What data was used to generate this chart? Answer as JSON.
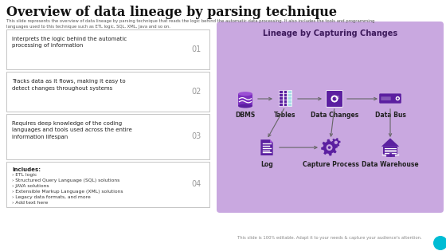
{
  "title": "Overview of data lineage by parsing technique",
  "subtitle": "This slide represents the overview of data lineage by parsing technique that reads the logic behind the automatic data processing. It also includes the tools and programming\nlanguages used to this technique such as ETL logic, SQL, XML, Java and so on.",
  "bg_color": "#ffffff",
  "right_panel_bg": "#c9a8e0",
  "right_panel_title": "Lineage by Capturing Changes",
  "right_title_color": "#3d1a5c",
  "icon_color": "#5b1fa0",
  "icon_color2": "#7b2fbe",
  "tables_cyan": "#a8dde8",
  "arrow_color": "#666666",
  "items": [
    {
      "num": "01",
      "text": "Interprets the logic behind the automatic\nprocessing of information",
      "bold_first": false
    },
    {
      "num": "02",
      "text": "Tracks data as it flows, making it easy to\ndetect changes throughout systems",
      "bold_first": false
    },
    {
      "num": "03",
      "text": "Requires deep knowledge of the coding\nlanguages and tools used across the entire\ninformation lifespan",
      "bold_first": false
    },
    {
      "num": "04",
      "text": "Includes:\n› ETL logic\n› Structured Query Language (SQL) solutions\n› JAVA solutions\n› Extensible Markup Language (XML) solutions\n› Legacy data formats, and more\n› Add text here",
      "bold_first": true
    }
  ],
  "nodes_row1": [
    "DBMS",
    "Tables",
    "Data Changes",
    "Data Bus"
  ],
  "nodes_row2": [
    "Log",
    "Capture Process",
    "Data Warehouse"
  ],
  "footer": "This slide is 100% editable. Adapt it to your needs & capture your audience's attention."
}
